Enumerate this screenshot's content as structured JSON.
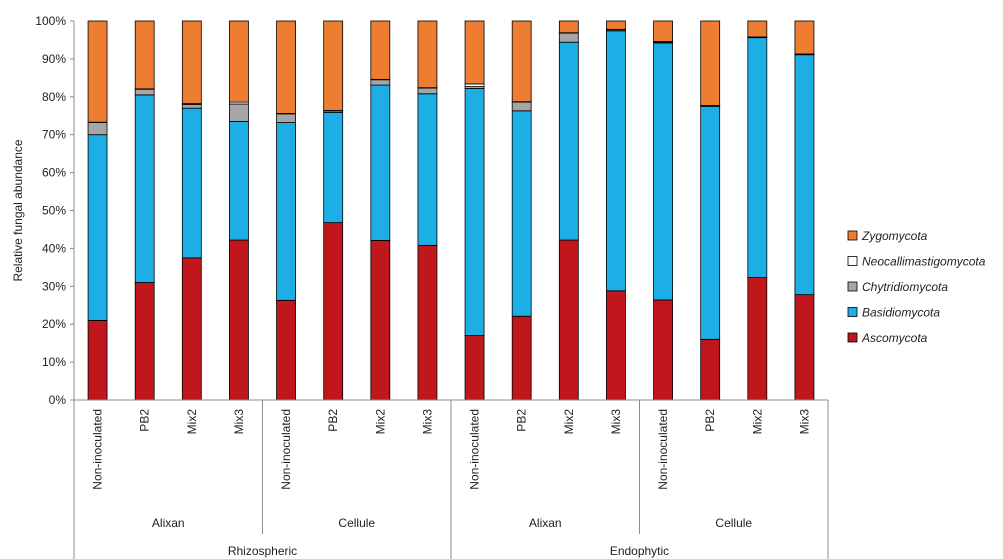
{
  "chart_data": {
    "type": "bar",
    "stacked": true,
    "ylabel": "Relative fungal abundance",
    "ylim": [
      0,
      100
    ],
    "y_ticks": [
      "0%",
      "10%",
      "20%",
      "30%",
      "40%",
      "50%",
      "60%",
      "70%",
      "80%",
      "90%",
      "100%"
    ],
    "grid": false,
    "legend_position": "right",
    "categories": [
      "Non-inoculated",
      "PB2",
      "Mix2",
      "Mix3",
      "Non-inoculated",
      "PB2",
      "Mix2",
      "Mix3",
      "Non-inoculated",
      "PB2",
      "Mix2",
      "Mix3",
      "Non-inoculated",
      "PB2",
      "Mix2",
      "Mix3"
    ],
    "group_level_1": [
      {
        "label": "Alixan",
        "count": 4
      },
      {
        "label": "Cellule",
        "count": 4
      },
      {
        "label": "Alixan",
        "count": 4
      },
      {
        "label": "Cellule",
        "count": 4
      }
    ],
    "group_level_2": [
      {
        "label": "Rhizospheric",
        "count": 8
      },
      {
        "label": "Endophytic",
        "count": 8
      }
    ],
    "series": [
      {
        "name": "Ascomycota",
        "color": "#c0171d",
        "values": [
          21,
          31,
          37.5,
          42.2,
          26.3,
          46.8,
          42.1,
          40.8,
          17.0,
          22.1,
          42.2,
          28.8,
          26.4,
          16.0,
          32.3,
          27.8
        ]
      },
      {
        "name": "Basidiomycota",
        "color": "#1eaee6",
        "values": [
          49,
          49.5,
          39.5,
          31.3,
          46.9,
          29.1,
          41.0,
          40.0,
          65.2,
          54.2,
          52.2,
          68.6,
          67.8,
          61.5,
          63.3,
          63.3
        ]
      },
      {
        "name": "Chytridiomycota",
        "color": "#a6a6a6",
        "values": [
          3.2,
          1.5,
          1.0,
          4.6,
          2.3,
          0.4,
          1.4,
          1.5,
          0.5,
          2.3,
          2.4,
          0.3,
          0.2,
          0.1,
          0.1,
          0.1
        ]
      },
      {
        "name": "Neocallimastigomycota",
        "color": "#ffffff",
        "values": [
          0.1,
          0.1,
          0.2,
          0.5,
          0.1,
          0.1,
          0.1,
          0.1,
          0.7,
          0.1,
          0.1,
          0.1,
          0.2,
          0.1,
          0.1,
          0.1
        ]
      },
      {
        "name": "Zygomycota",
        "color": "#ed7d31",
        "values": [
          26.7,
          17.9,
          21.8,
          21.4,
          24.4,
          23.6,
          15.4,
          17.6,
          16.6,
          21.3,
          3.1,
          2.2,
          5.4,
          22.3,
          4.2,
          8.7
        ]
      }
    ],
    "legend_order": [
      "Zygomycota",
      "Neocallimastigomycota",
      "Chytridiomycota",
      "Basidiomycota",
      "Ascomycota"
    ]
  }
}
